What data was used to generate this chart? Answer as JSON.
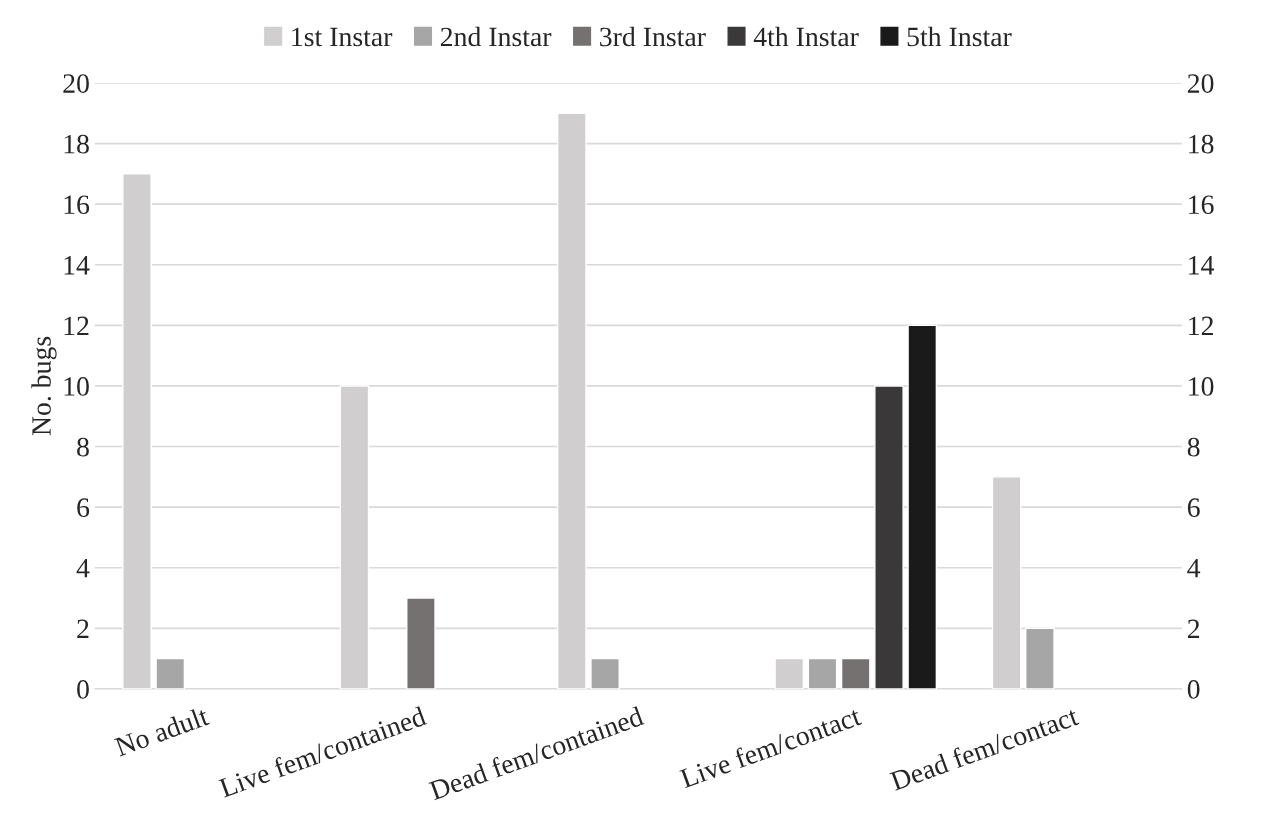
{
  "chart_data": {
    "type": "bar",
    "ylabel": "No. bugs",
    "categories": [
      "No adult",
      "Live fem/contained",
      "Dead fem/contained",
      "Live fem/contact",
      "Dead fem/contact"
    ],
    "series": [
      {
        "name": "1st Instar",
        "color": "#d0cece",
        "values": [
          17,
          10,
          19,
          1,
          7
        ]
      },
      {
        "name": "2nd Instar",
        "color": "#a6a6a6",
        "values": [
          1,
          null,
          1,
          1,
          2
        ]
      },
      {
        "name": "3rd Instar",
        "color": "#767171",
        "values": [
          null,
          3,
          null,
          1,
          null
        ]
      },
      {
        "name": "4th Instar",
        "color": "#3a3838",
        "values": [
          null,
          null,
          null,
          10,
          null
        ]
      },
      {
        "name": "5th Instar",
        "color": "#1a1a1a",
        "values": [
          null,
          null,
          null,
          12,
          null
        ]
      }
    ],
    "ylim": [
      0,
      20
    ],
    "yticks": [
      0,
      2,
      4,
      6,
      8,
      10,
      12,
      14,
      16,
      18,
      20
    ],
    "y2lim": [
      0,
      20
    ],
    "y2ticks": [
      0,
      2,
      4,
      6,
      8,
      10,
      12,
      14,
      16,
      18,
      20
    ],
    "grid": "y",
    "legend": "top"
  }
}
